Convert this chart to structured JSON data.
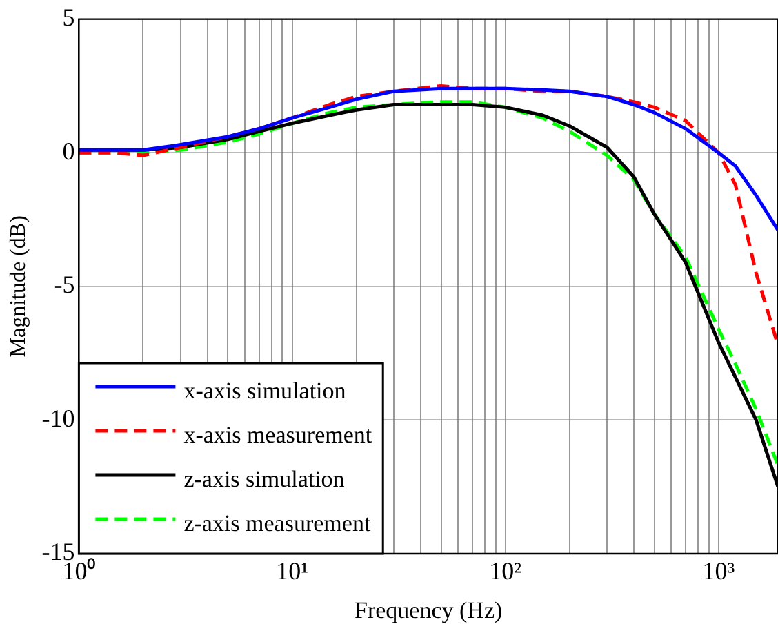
{
  "chart_data": {
    "type": "line",
    "xlabel": "Frequency (Hz)",
    "ylabel": "Magnitude (dB)",
    "log": "x",
    "x": [
      1,
      1.5,
      2,
      3,
      5,
      7,
      10,
      15,
      20,
      30,
      50,
      70,
      100,
      150,
      200,
      300,
      400,
      500,
      700,
      1000,
      1200,
      1500,
      1900
    ],
    "series": [
      {
        "name": "x-axis simulation",
        "color": "#0000ff",
        "line_style": "solid",
        "values": [
          0.1,
          0.1,
          0.1,
          0.3,
          0.6,
          0.9,
          1.3,
          1.7,
          2.0,
          2.3,
          2.4,
          2.4,
          2.4,
          2.35,
          2.3,
          2.1,
          1.8,
          1.5,
          0.9,
          0.0,
          -0.5,
          -1.6,
          -2.9
        ]
      },
      {
        "name": "x-axis measurement",
        "color": "#ff0000",
        "line_style": "dashed",
        "values": [
          0.0,
          0.0,
          -0.1,
          0.2,
          0.6,
          0.9,
          1.3,
          1.8,
          2.1,
          2.3,
          2.5,
          2.4,
          2.4,
          2.3,
          2.3,
          2.1,
          1.9,
          1.7,
          1.2,
          0.0,
          -1.2,
          -4.5,
          -7.2
        ]
      },
      {
        "name": "z-axis simulation",
        "color": "#000000",
        "line_style": "solid",
        "values": [
          0.1,
          0.1,
          0.1,
          0.2,
          0.5,
          0.8,
          1.1,
          1.4,
          1.6,
          1.8,
          1.8,
          1.8,
          1.7,
          1.4,
          1.0,
          0.2,
          -0.9,
          -2.3,
          -4.1,
          -7.1,
          -8.4,
          -10.0,
          -12.5
        ]
      },
      {
        "name": "z-axis measurement",
        "color": "#00ff00",
        "line_style": "dashed",
        "values": [
          0.0,
          0.0,
          0.0,
          0.1,
          0.4,
          0.7,
          1.1,
          1.5,
          1.7,
          1.8,
          1.9,
          1.9,
          1.7,
          1.3,
          0.8,
          -0.1,
          -1.0,
          -2.3,
          -3.9,
          -6.6,
          -7.9,
          -9.6,
          -11.7
        ]
      }
    ],
    "xlim": [
      1,
      1900
    ],
    "xticks": [
      {
        "value": 1,
        "label": "10⁰"
      },
      {
        "value": 2,
        "label": null
      },
      {
        "value": 3,
        "label": null
      },
      {
        "value": 4,
        "label": null
      },
      {
        "value": 5,
        "label": null
      },
      {
        "value": 6,
        "label": null
      },
      {
        "value": 7,
        "label": null
      },
      {
        "value": 8,
        "label": null
      },
      {
        "value": 9,
        "label": null
      },
      {
        "value": 10,
        "label": "10¹"
      },
      {
        "value": 20,
        "label": null
      },
      {
        "value": 30,
        "label": null
      },
      {
        "value": 40,
        "label": null
      },
      {
        "value": 50,
        "label": null
      },
      {
        "value": 60,
        "label": null
      },
      {
        "value": 70,
        "label": null
      },
      {
        "value": 80,
        "label": null
      },
      {
        "value": 90,
        "label": null
      },
      {
        "value": 100,
        "label": "10²"
      },
      {
        "value": 200,
        "label": null
      },
      {
        "value": 300,
        "label": null
      },
      {
        "value": 400,
        "label": null
      },
      {
        "value": 500,
        "label": null
      },
      {
        "value": 600,
        "label": null
      },
      {
        "value": 700,
        "label": null
      },
      {
        "value": 800,
        "label": null
      },
      {
        "value": 900,
        "label": null
      },
      {
        "value": 1000,
        "label": "10³"
      }
    ],
    "ylim": [
      -15,
      5
    ],
    "yticks": [
      -15,
      -10,
      -5,
      0,
      5
    ],
    "grid": true,
    "legend": "bottom left",
    "marker": "none"
  }
}
